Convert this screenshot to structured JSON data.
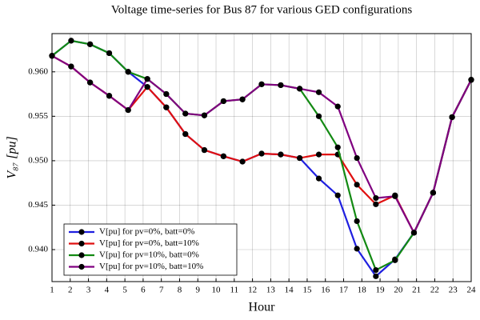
{
  "chart_data": {
    "type": "line",
    "title": "Voltage time-series for Bus 87 for various GED configurations",
    "xlabel": "Hour",
    "ylabel": "V₈₇ [pu]",
    "x": [
      1,
      2.05,
      3.09,
      4.14,
      5.18,
      6.23,
      7.27,
      8.32,
      9.36,
      10.41,
      11.45,
      12.5,
      13.55,
      14.59,
      15.64,
      16.68,
      17.73,
      18.77,
      19.82,
      20.86,
      21.91,
      22.95,
      24
    ],
    "series": [
      {
        "name": "V[pu] for pv=0%, batt=0%",
        "color": "#1f1fe0",
        "values": [
          0.9618,
          0.9635,
          0.9631,
          0.9621,
          0.96,
          0.9583,
          0.956,
          0.953,
          0.9512,
          0.9505,
          0.9499,
          0.9508,
          0.9507,
          0.9503,
          0.948,
          0.9461,
          0.9401,
          0.937,
          0.9389,
          0.9419,
          0.9464,
          0.9549,
          0.9591
        ]
      },
      {
        "name": "V[pu] for pv=0%, batt=10%",
        "color": "#e01010",
        "values": [
          0.9618,
          0.9606,
          0.9588,
          0.9573,
          0.9557,
          0.9583,
          0.956,
          0.953,
          0.9512,
          0.9505,
          0.9499,
          0.9508,
          0.9507,
          0.9503,
          0.9507,
          0.9507,
          0.9473,
          0.9451,
          0.9461,
          0.9419,
          0.9464,
          0.9549,
          0.9591
        ]
      },
      {
        "name": "V[pu] for pv=10%, batt=0%",
        "color": "#138a13",
        "values": [
          0.9618,
          0.9635,
          0.9631,
          0.9621,
          0.96,
          0.9592,
          0.9575,
          0.9553,
          0.9551,
          0.9567,
          0.9569,
          0.9586,
          0.9585,
          0.9581,
          0.955,
          0.9515,
          0.9432,
          0.9377,
          0.9388,
          0.9419,
          0.9464,
          0.9549,
          0.9591
        ]
      },
      {
        "name": "V[pu] for pv=10%, batt=10%",
        "color": "#800080",
        "values": [
          0.9618,
          0.9606,
          0.9588,
          0.9573,
          0.9557,
          0.9592,
          0.9575,
          0.9553,
          0.9551,
          0.9567,
          0.9569,
          0.9586,
          0.9585,
          0.9581,
          0.9577,
          0.9561,
          0.9503,
          0.9458,
          0.946,
          0.9419,
          0.9464,
          0.9549,
          0.9591
        ]
      }
    ],
    "xlim": [
      1,
      24
    ],
    "xticks": [
      1,
      2,
      3,
      4,
      5,
      6,
      7,
      8,
      9,
      10,
      11,
      12,
      13,
      14,
      15,
      16,
      17,
      18,
      19,
      20,
      21,
      22,
      23,
      24
    ],
    "ylim": [
      0.9364,
      0.9643
    ],
    "yticks": [
      {
        "value": 0.94,
        "label": "0.940"
      },
      {
        "value": 0.945,
        "label": "0.945"
      },
      {
        "value": 0.95,
        "label": "0.950"
      },
      {
        "value": 0.955,
        "label": "0.955"
      },
      {
        "value": 0.96,
        "label": "0.960"
      }
    ],
    "grid": true,
    "legend": "lower left"
  }
}
